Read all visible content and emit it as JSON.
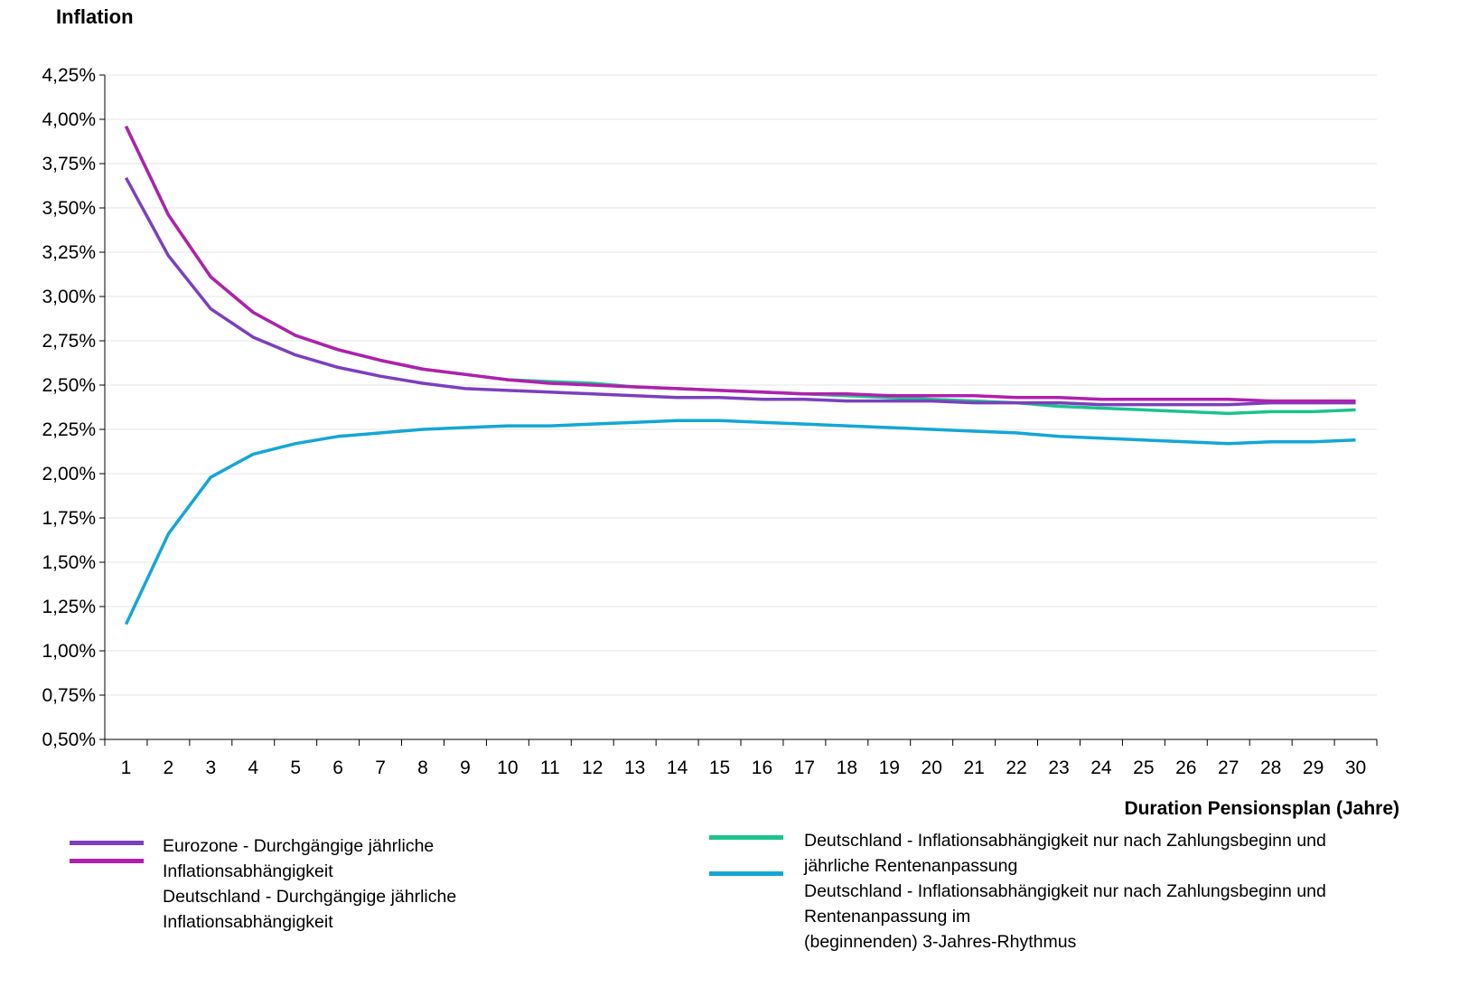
{
  "chart_data": {
    "type": "line",
    "title": "Inflation",
    "xlabel": "Duration Pensionsplan (Jahre)",
    "ylabel": "",
    "x": [
      1,
      2,
      3,
      4,
      5,
      6,
      7,
      8,
      9,
      10,
      11,
      12,
      13,
      14,
      15,
      16,
      17,
      18,
      19,
      20,
      21,
      22,
      23,
      24,
      25,
      26,
      27,
      28,
      29,
      30
    ],
    "ylim": [
      0.5,
      4.25
    ],
    "yticks": [
      "0,50%",
      "0,75%",
      "1,00%",
      "1,25%",
      "1,50%",
      "1,75%",
      "2,00%",
      "2,25%",
      "2,50%",
      "2,75%",
      "3,00%",
      "3,25%",
      "3,50%",
      "3,75%",
      "4,00%",
      "4,25%"
    ],
    "grid": true,
    "legend_position": "bottom",
    "series": [
      {
        "name": "Eurozone - Durchgängige jährliche Inflationsabhängigkeit",
        "color": "#7B3FBF",
        "values": [
          3.67,
          3.23,
          2.93,
          2.77,
          2.67,
          2.6,
          2.55,
          2.51,
          2.48,
          2.47,
          2.46,
          2.45,
          2.44,
          2.43,
          2.43,
          2.42,
          2.42,
          2.41,
          2.41,
          2.41,
          2.4,
          2.4,
          2.4,
          2.39,
          2.39,
          2.39,
          2.39,
          2.4,
          2.4,
          2.4
        ]
      },
      {
        "name": "Deutschland - Durchgängige jährliche Inflationsabhängigkeit",
        "color": "#B21FAE",
        "values": [
          3.96,
          3.46,
          3.11,
          2.91,
          2.78,
          2.7,
          2.64,
          2.59,
          2.56,
          2.53,
          2.51,
          2.5,
          2.49,
          2.48,
          2.47,
          2.46,
          2.45,
          2.45,
          2.44,
          2.44,
          2.44,
          2.43,
          2.43,
          2.42,
          2.42,
          2.42,
          2.42,
          2.41,
          2.41,
          2.41
        ]
      },
      {
        "name": "Deutschland - Inflationsabhängigkeit nur nach Zahlungsbeginn und jährliche Rentenanpassung",
        "color": "#1DC28E",
        "values": [
          3.96,
          3.46,
          3.11,
          2.91,
          2.78,
          2.7,
          2.64,
          2.59,
          2.56,
          2.53,
          2.52,
          2.51,
          2.49,
          2.48,
          2.47,
          2.46,
          2.45,
          2.44,
          2.43,
          2.42,
          2.41,
          2.4,
          2.38,
          2.37,
          2.36,
          2.35,
          2.34,
          2.35,
          2.35,
          2.36
        ]
      },
      {
        "name": "Deutschland - Inflationsabhängigkeit nur nach Zahlungsbeginn und Rentenanpassung im (beginnenden) 3-Jahres-Rhythmus",
        "color": "#14A6D6",
        "values": [
          1.15,
          1.66,
          1.98,
          2.11,
          2.17,
          2.21,
          2.23,
          2.25,
          2.26,
          2.27,
          2.27,
          2.28,
          2.29,
          2.3,
          2.3,
          2.29,
          2.28,
          2.27,
          2.26,
          2.25,
          2.24,
          2.23,
          2.21,
          2.2,
          2.19,
          2.18,
          2.17,
          2.18,
          2.18,
          2.19
        ]
      }
    ]
  },
  "legend": {
    "left_text": "Eurozone - Durchgängige jährliche\nInflationsabhängigkeit\nDeutschland - Durchgängige jährliche\nInflationsabhängigkeit",
    "right_text": "Deutschland - Inflationsabhängigkeit nur nach Zahlungsbeginn und\njährliche Rentenanpassung\nDeutschland - Inflationsabhängigkeit nur nach Zahlungsbeginn und\nRentenanpassung im\n(beginnenden) 3-Jahres-Rhythmus"
  }
}
